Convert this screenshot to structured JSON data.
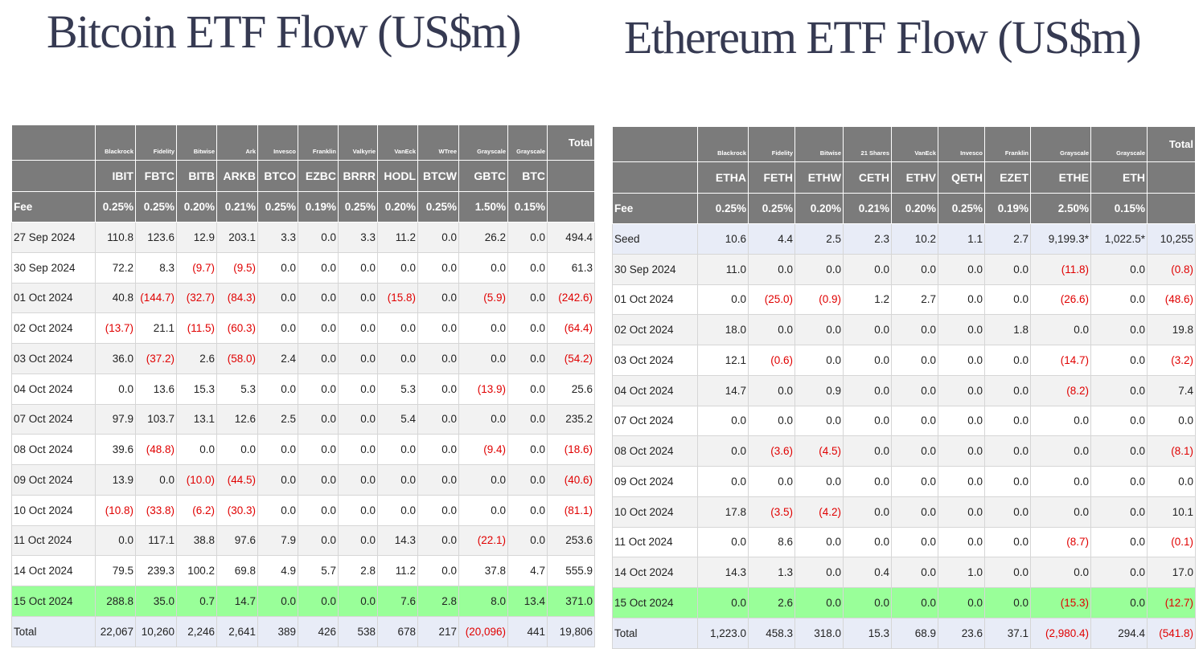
{
  "bitcoin": {
    "title": "Bitcoin ETF Flow (US$m)",
    "total_label": "Total",
    "fee_label": "Fee",
    "issuers": [
      "Blackrock",
      "Fidelity",
      "Bitwise",
      "Ark",
      "Invesco",
      "Franklin",
      "Valkyrie",
      "VanEck",
      "WTree",
      "Grayscale",
      "Grayscale"
    ],
    "tickers": [
      "IBIT",
      "FBTC",
      "BITB",
      "ARKB",
      "BTCO",
      "EZBC",
      "BRRR",
      "HODL",
      "BTCW",
      "GBTC",
      "BTC"
    ],
    "fees": [
      "0.25%",
      "0.25%",
      "0.20%",
      "0.21%",
      "0.25%",
      "0.19%",
      "0.25%",
      "0.20%",
      "0.25%",
      "1.50%",
      "0.15%"
    ],
    "rows": [
      {
        "date": "27 Sep 2024",
        "values": [
          "110.8",
          "123.6",
          "12.9",
          "203.1",
          "3.3",
          "0.0",
          "3.3",
          "11.2",
          "0.0",
          "26.2",
          "0.0",
          "494.4"
        ]
      },
      {
        "date": "30 Sep 2024",
        "values": [
          "72.2",
          "8.3",
          "(9.7)",
          "(9.5)",
          "0.0",
          "0.0",
          "0.0",
          "0.0",
          "0.0",
          "0.0",
          "0.0",
          "61.3"
        ]
      },
      {
        "date": "01 Oct 2024",
        "values": [
          "40.8",
          "(144.7)",
          "(32.7)",
          "(84.3)",
          "0.0",
          "0.0",
          "0.0",
          "(15.8)",
          "0.0",
          "(5.9)",
          "0.0",
          "(242.6)"
        ]
      },
      {
        "date": "02 Oct 2024",
        "values": [
          "(13.7)",
          "21.1",
          "(11.5)",
          "(60.3)",
          "0.0",
          "0.0",
          "0.0",
          "0.0",
          "0.0",
          "0.0",
          "0.0",
          "(64.4)"
        ]
      },
      {
        "date": "03 Oct 2024",
        "values": [
          "36.0",
          "(37.2)",
          "2.6",
          "(58.0)",
          "2.4",
          "0.0",
          "0.0",
          "0.0",
          "0.0",
          "0.0",
          "0.0",
          "(54.2)"
        ]
      },
      {
        "date": "04 Oct 2024",
        "values": [
          "0.0",
          "13.6",
          "15.3",
          "5.3",
          "0.0",
          "0.0",
          "0.0",
          "5.3",
          "0.0",
          "(13.9)",
          "0.0",
          "25.6"
        ]
      },
      {
        "date": "07 Oct 2024",
        "values": [
          "97.9",
          "103.7",
          "13.1",
          "12.6",
          "2.5",
          "0.0",
          "0.0",
          "5.4",
          "0.0",
          "0.0",
          "0.0",
          "235.2"
        ]
      },
      {
        "date": "08 Oct 2024",
        "values": [
          "39.6",
          "(48.8)",
          "0.0",
          "0.0",
          "0.0",
          "0.0",
          "0.0",
          "0.0",
          "0.0",
          "(9.4)",
          "0.0",
          "(18.6)"
        ]
      },
      {
        "date": "09 Oct 2024",
        "values": [
          "13.9",
          "0.0",
          "(10.0)",
          "(44.5)",
          "0.0",
          "0.0",
          "0.0",
          "0.0",
          "0.0",
          "0.0",
          "0.0",
          "(40.6)"
        ]
      },
      {
        "date": "10 Oct 2024",
        "values": [
          "(10.8)",
          "(33.8)",
          "(6.2)",
          "(30.3)",
          "0.0",
          "0.0",
          "0.0",
          "0.0",
          "0.0",
          "0.0",
          "0.0",
          "(81.1)"
        ]
      },
      {
        "date": "11 Oct 2024",
        "values": [
          "0.0",
          "117.1",
          "38.8",
          "97.6",
          "7.9",
          "0.0",
          "0.0",
          "14.3",
          "0.0",
          "(22.1)",
          "0.0",
          "253.6"
        ]
      },
      {
        "date": "14 Oct 2024",
        "values": [
          "79.5",
          "239.3",
          "100.2",
          "69.8",
          "4.9",
          "5.7",
          "2.8",
          "11.2",
          "0.0",
          "37.8",
          "4.7",
          "555.9"
        ]
      },
      {
        "date": "15 Oct 2024",
        "values": [
          "288.8",
          "35.0",
          "0.7",
          "14.7",
          "0.0",
          "0.0",
          "0.0",
          "7.6",
          "2.8",
          "8.0",
          "13.4",
          "371.0"
        ],
        "highlight": true
      },
      {
        "date": "Total",
        "values": [
          "22,067",
          "10,260",
          "2,246",
          "2,641",
          "389",
          "426",
          "538",
          "678",
          "217",
          "(20,096)",
          "441",
          "19,806"
        ],
        "total": true
      }
    ]
  },
  "ethereum": {
    "title": "Ethereum ETF Flow (US$m)",
    "total_label": "Total",
    "fee_label": "Fee",
    "issuers": [
      "Blackrock",
      "Fidelity",
      "Bitwise",
      "21 Shares",
      "VanEck",
      "Invesco",
      "Franklin",
      "Grayscale",
      "Grayscale"
    ],
    "tickers": [
      "ETHA",
      "FETH",
      "ETHW",
      "CETH",
      "ETHV",
      "QETH",
      "EZET",
      "ETHE",
      "ETH"
    ],
    "fees": [
      "0.25%",
      "0.25%",
      "0.20%",
      "0.21%",
      "0.20%",
      "0.25%",
      "0.19%",
      "2.50%",
      "0.15%"
    ],
    "rows": [
      {
        "date": "Seed",
        "values": [
          "10.6",
          "4.4",
          "2.5",
          "2.3",
          "10.2",
          "1.1",
          "2.7",
          "9,199.3*",
          "1,022.5*",
          "10,255"
        ],
        "seed": true
      },
      {
        "date": "30 Sep 2024",
        "values": [
          "11.0",
          "0.0",
          "0.0",
          "0.0",
          "0.0",
          "0.0",
          "0.0",
          "(11.8)",
          "0.0",
          "(0.8)"
        ]
      },
      {
        "date": "01 Oct 2024",
        "values": [
          "0.0",
          "(25.0)",
          "(0.9)",
          "1.2",
          "2.7",
          "0.0",
          "0.0",
          "(26.6)",
          "0.0",
          "(48.6)"
        ]
      },
      {
        "date": "02 Oct 2024",
        "values": [
          "18.0",
          "0.0",
          "0.0",
          "0.0",
          "0.0",
          "0.0",
          "1.8",
          "0.0",
          "0.0",
          "19.8"
        ]
      },
      {
        "date": "03 Oct 2024",
        "values": [
          "12.1",
          "(0.6)",
          "0.0",
          "0.0",
          "0.0",
          "0.0",
          "0.0",
          "(14.7)",
          "0.0",
          "(3.2)"
        ]
      },
      {
        "date": "04 Oct 2024",
        "values": [
          "14.7",
          "0.0",
          "0.9",
          "0.0",
          "0.0",
          "0.0",
          "0.0",
          "(8.2)",
          "0.0",
          "7.4"
        ]
      },
      {
        "date": "07 Oct 2024",
        "values": [
          "0.0",
          "0.0",
          "0.0",
          "0.0",
          "0.0",
          "0.0",
          "0.0",
          "0.0",
          "0.0",
          "0.0"
        ]
      },
      {
        "date": "08 Oct 2024",
        "values": [
          "0.0",
          "(3.6)",
          "(4.5)",
          "0.0",
          "0.0",
          "0.0",
          "0.0",
          "0.0",
          "0.0",
          "(8.1)"
        ]
      },
      {
        "date": "09 Oct 2024",
        "values": [
          "0.0",
          "0.0",
          "0.0",
          "0.0",
          "0.0",
          "0.0",
          "0.0",
          "0.0",
          "0.0",
          "0.0"
        ]
      },
      {
        "date": "10 Oct 2024",
        "values": [
          "17.8",
          "(3.5)",
          "(4.2)",
          "0.0",
          "0.0",
          "0.0",
          "0.0",
          "0.0",
          "0.0",
          "10.1"
        ]
      },
      {
        "date": "11 Oct 2024",
        "values": [
          "0.0",
          "8.6",
          "0.0",
          "0.0",
          "0.0",
          "0.0",
          "0.0",
          "(8.7)",
          "0.0",
          "(0.1)"
        ]
      },
      {
        "date": "14 Oct 2024",
        "values": [
          "14.3",
          "1.3",
          "0.0",
          "0.4",
          "0.0",
          "1.0",
          "0.0",
          "0.0",
          "0.0",
          "17.0"
        ]
      },
      {
        "date": "15 Oct 2024",
        "values": [
          "0.0",
          "2.6",
          "0.0",
          "0.0",
          "0.0",
          "0.0",
          "0.0",
          "(15.3)",
          "0.0",
          "(12.7)"
        ],
        "highlight": true
      },
      {
        "date": "Total",
        "values": [
          "1,223.0",
          "458.3",
          "318.0",
          "15.3",
          "68.9",
          "23.6",
          "37.1",
          "(2,980.4)",
          "294.4",
          "(541.8)"
        ],
        "total": true
      }
    ]
  },
  "colors": {
    "header_bg": "#7b7b7b",
    "negative": "#e00000",
    "highlight_row": "#99ff99",
    "total_row": "#e8ecf7",
    "alt_row": "#f2f2f2",
    "title": "#363a52"
  }
}
